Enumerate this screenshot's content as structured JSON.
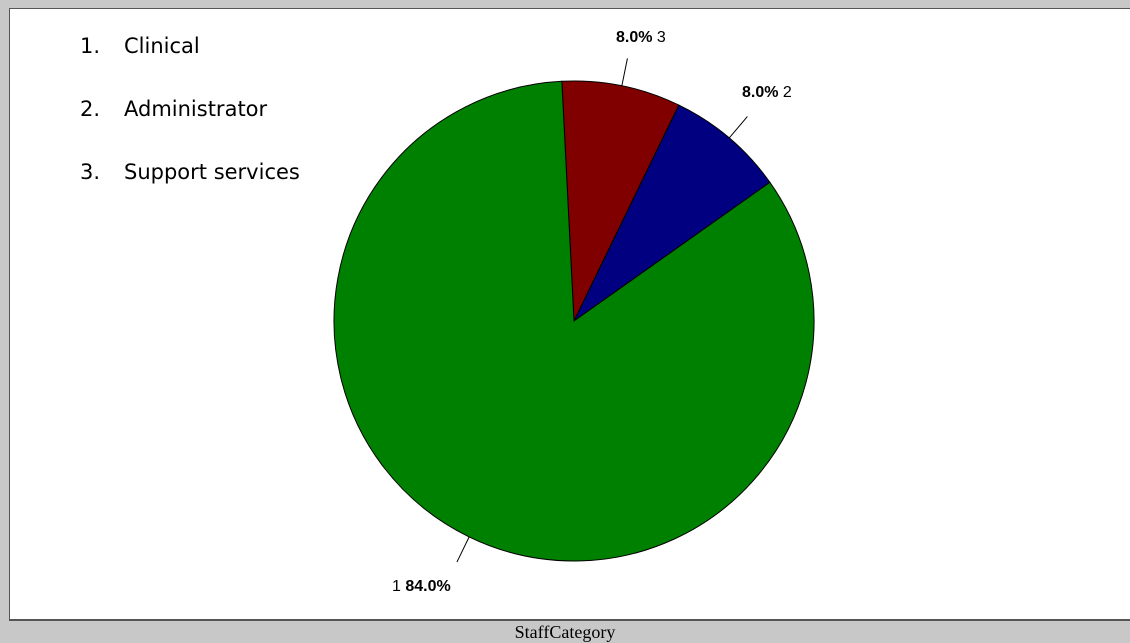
{
  "legend": {
    "items": [
      {
        "number": "1.",
        "label": "Clinical"
      },
      {
        "number": "2.",
        "label": "Administrator"
      },
      {
        "number": "3.",
        "label": "Support services"
      }
    ]
  },
  "chart_data": {
    "type": "pie",
    "title": "StaffCategory",
    "categories": [
      "1",
      "2",
      "3"
    ],
    "values": [
      84.0,
      8.0,
      8.0
    ],
    "labels": [
      "84.0%",
      "8.0%",
      "8.0%"
    ],
    "colors": [
      "#008000",
      "#000080",
      "#800000"
    ],
    "legend_placement": "top-left"
  }
}
